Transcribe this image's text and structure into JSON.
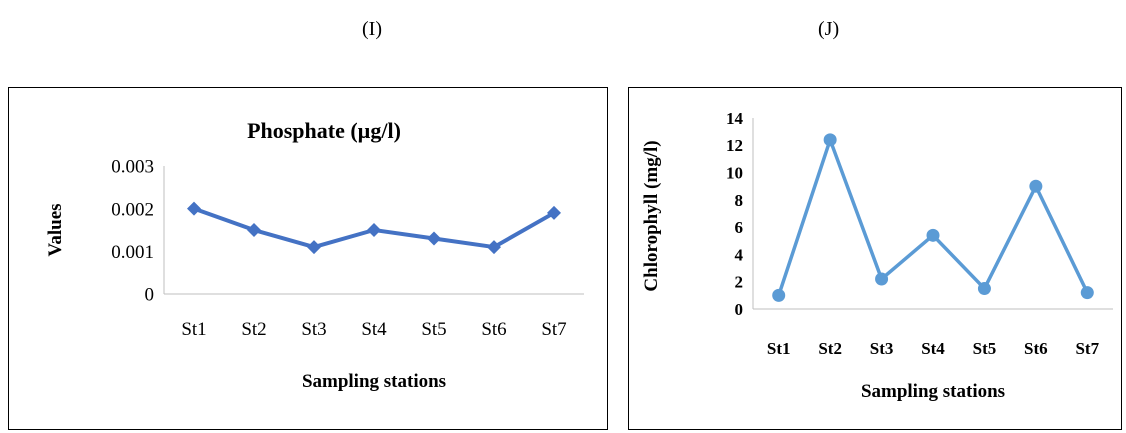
{
  "panels": {
    "left_letter": "(I)",
    "right_letter": "(J)"
  },
  "chart_data": [
    {
      "type": "line",
      "title": "Phosphate (µg/l)",
      "xlabel": "Sampling stations",
      "ylabel": "Values",
      "categories": [
        "St1",
        "St2",
        "St3",
        "St4",
        "St5",
        "St6",
        "St7"
      ],
      "values": [
        0.002,
        0.0015,
        0.0011,
        0.0015,
        0.0013,
        0.0011,
        0.0019
      ],
      "ylim": [
        0,
        0.003
      ],
      "yticks": [
        "0",
        "0.001",
        "0.002",
        "0.003"
      ],
      "marker": "diamond",
      "grid": false,
      "color": "#4472C4"
    },
    {
      "type": "line",
      "title": "",
      "xlabel": "Sampling stations",
      "ylabel": "Chlorophyll (mg/l)",
      "categories": [
        "St1",
        "St2",
        "St3",
        "St4",
        "St5",
        "St6",
        "St7"
      ],
      "values": [
        1.0,
        12.4,
        2.2,
        5.4,
        1.5,
        9.0,
        1.2
      ],
      "ylim": [
        0,
        14
      ],
      "yticks": [
        "0",
        "2",
        "4",
        "6",
        "8",
        "10",
        "12",
        "14"
      ],
      "marker": "circle",
      "grid": false,
      "color": "#5B9BD5"
    }
  ]
}
